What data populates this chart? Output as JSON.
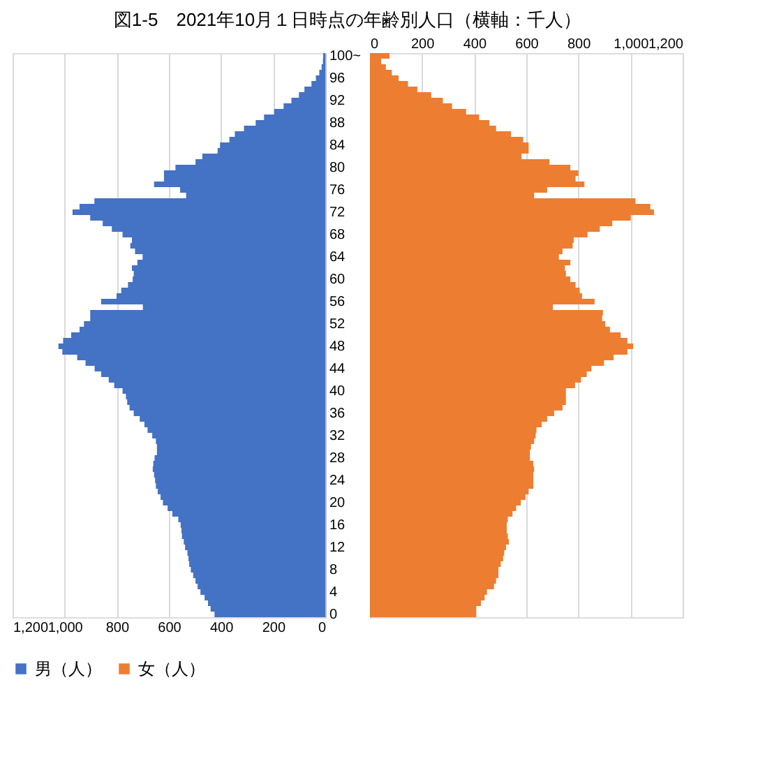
{
  "chart_data": [
    {
      "type": "bar",
      "orientation": "horizontal",
      "title": "図1-5　2021年10月１日時点の年齢別人口（横軸：千人）",
      "categories": [
        "100~",
        null,
        null,
        null,
        "96",
        null,
        null,
        null,
        "92",
        null,
        null,
        null,
        "88",
        null,
        null,
        null,
        "84",
        null,
        null,
        null,
        "80",
        null,
        null,
        null,
        "76",
        null,
        null,
        null,
        "72",
        null,
        null,
        null,
        "68",
        null,
        null,
        null,
        "64",
        null,
        null,
        null,
        "60",
        null,
        null,
        null,
        "56",
        null,
        null,
        null,
        "52",
        null,
        null,
        null,
        "48",
        null,
        null,
        null,
        "44",
        null,
        null,
        null,
        "40",
        null,
        null,
        null,
        "36",
        null,
        null,
        null,
        "32",
        null,
        null,
        null,
        "28",
        null,
        null,
        null,
        "24",
        null,
        null,
        null,
        "20",
        null,
        null,
        null,
        "16",
        null,
        null,
        null,
        "12",
        null,
        null,
        null,
        "8",
        null,
        null,
        null,
        "4",
        null,
        null,
        null,
        "0"
      ],
      "series": [
        {
          "name": "男（人）",
          "color": "#4472c4",
          "values": [
            8,
            9,
            14,
            23,
            36,
            53,
            80,
            101,
            130,
            160,
            196,
            235,
            267,
            312,
            347,
            368,
            404,
            413,
            472,
            498,
            575,
            619,
            619,
            657,
            557,
            534,
            886,
            943,
            970,
            902,
            854,
            819,
            778,
            742,
            748,
            730,
            701,
            721,
            742,
            735,
            739,
            757,
            783,
            801,
            860,
            700,
            902,
            902,
            926,
            943,
            975,
            1006,
            1024,
            1009,
            952,
            920,
            885,
            860,
            831,
            810,
            778,
            765,
            760,
            751,
            735,
            712,
            694,
            682,
            664,
            650,
            646,
            646,
            655,
            660,
            662,
            657,
            653,
            650,
            643,
            632,
            623,
            605,
            587,
            564,
            555,
            552,
            550,
            543,
            538,
            529,
            525,
            522,
            516,
            507,
            498,
            490,
            479,
            463,
            450,
            440,
            425
          ]
        }
      ],
      "xlim": [
        1200,
        0
      ],
      "xticks": [
        {
          "value": 1200,
          "label": "1,200"
        },
        {
          "value": 1000,
          "label": "1,000"
        },
        800,
        600,
        400,
        200,
        0
      ],
      "grid": "x",
      "legend": "bottom"
    },
    {
      "type": "bar",
      "orientation": "horizontal",
      "series": [
        {
          "name": "女（人）",
          "color": "#ed7d31",
          "axis": "x2",
          "values": [
            75,
            43,
            61,
            84,
            110,
            146,
            182,
            235,
            280,
            315,
            369,
            419,
            458,
            484,
            541,
            588,
            609,
            609,
            582,
            689,
            769,
            800,
            789,
            823,
            680,
            630,
            1019,
            1076,
            1090,
            1001,
            930,
            882,
            835,
            782,
            778,
            739,
            725,
            769,
            748,
            752,
            769,
            789,
            805,
            814,
            862,
            702,
            894,
            891,
            903,
            921,
            962,
            988,
            1010,
            988,
            935,
            898,
            850,
            832,
            810,
            787,
            752,
            752,
            752,
            739,
            707,
            680,
            659,
            639,
            636,
            630,
            618,
            614,
            614,
            627,
            630,
            627,
            627,
            627,
            609,
            597,
            579,
            561,
            547,
            529,
            525,
            525,
            529,
            533,
            522,
            515,
            511,
            502,
            493,
            493,
            484,
            476,
            449,
            440,
            426,
            408,
            408
          ]
        }
      ],
      "x2lim": [
        0,
        1200
      ],
      "x2ticks": [
        0,
        200,
        400,
        600,
        800,
        {
          "value": 1000,
          "label": "1,000"
        },
        {
          "value": 1200,
          "label": "1,200"
        }
      ],
      "tick_labels": "x",
      "grid": "x",
      "legend": "bottom"
    }
  ]
}
